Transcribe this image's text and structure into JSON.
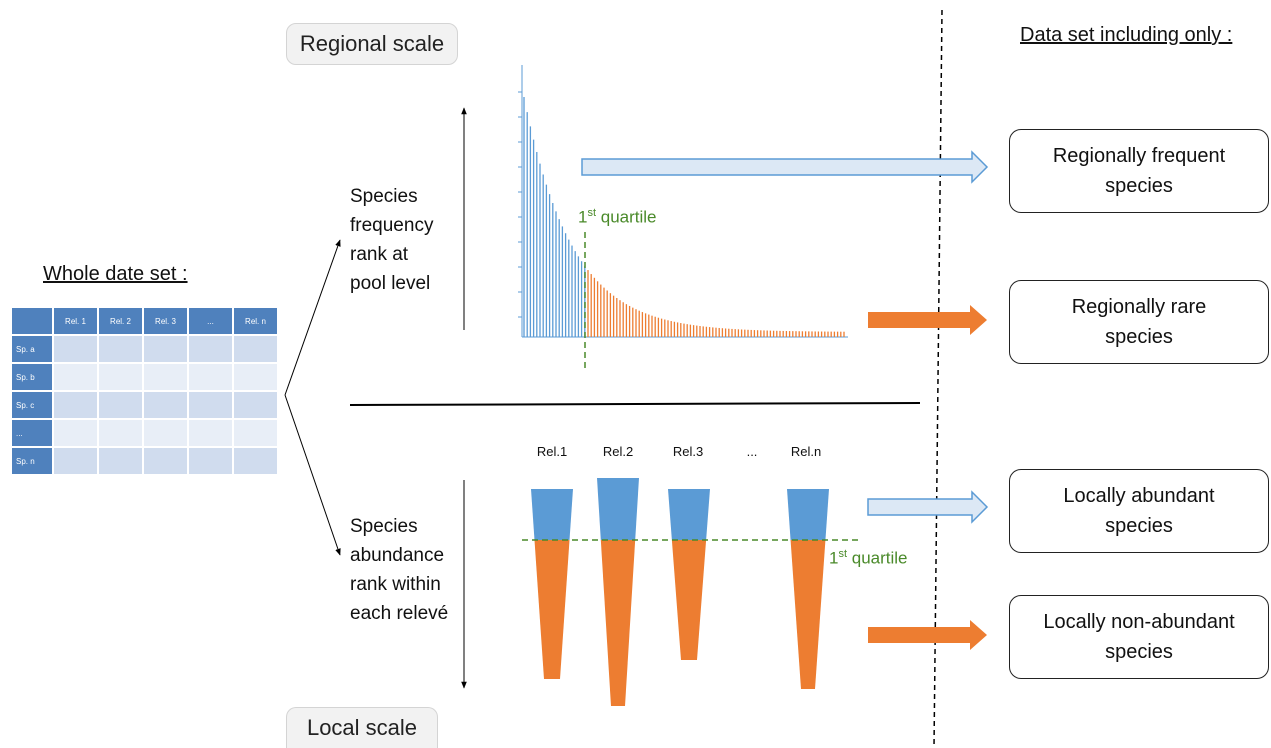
{
  "scales": {
    "regional": "Regional scale",
    "local": "Local scale"
  },
  "whole_dataset": {
    "title": "Whole date set :",
    "columns": [
      "Rel. 1",
      "Rel. 2",
      "Rel. 3",
      "...",
      "Rel. n"
    ],
    "rows": [
      "Sp. a",
      "Sp. b",
      "Sp. c",
      "...",
      "Sp. n"
    ]
  },
  "regional": {
    "axis_label": "Species\nfrequency\nrank at\npool level",
    "quartile": {
      "base": "1",
      "sup": "st",
      "rest": " quartile"
    }
  },
  "local": {
    "axis_label": "Species\nabundance\nrank within\neach relevé",
    "columns": [
      "Rel.1",
      "Rel.2",
      "Rel.3",
      "...",
      "Rel.n"
    ],
    "quartile": {
      "base": "1",
      "sup": "st",
      "rest": " quartile"
    }
  },
  "output": {
    "title": "Data set including only :",
    "boxes": [
      "Regionally frequent\nspecies",
      "Regionally rare\nspecies",
      "Locally abundant\nspecies",
      "Locally non-abundant\nspecies"
    ]
  },
  "colors": {
    "blue": "#5b9bd5",
    "orange": "#ed7d31",
    "green": "#4a8a2a",
    "table_header": "#4f81bd",
    "table_cell_dark": "#d0dcee",
    "table_cell_light": "#e8eef7"
  }
}
